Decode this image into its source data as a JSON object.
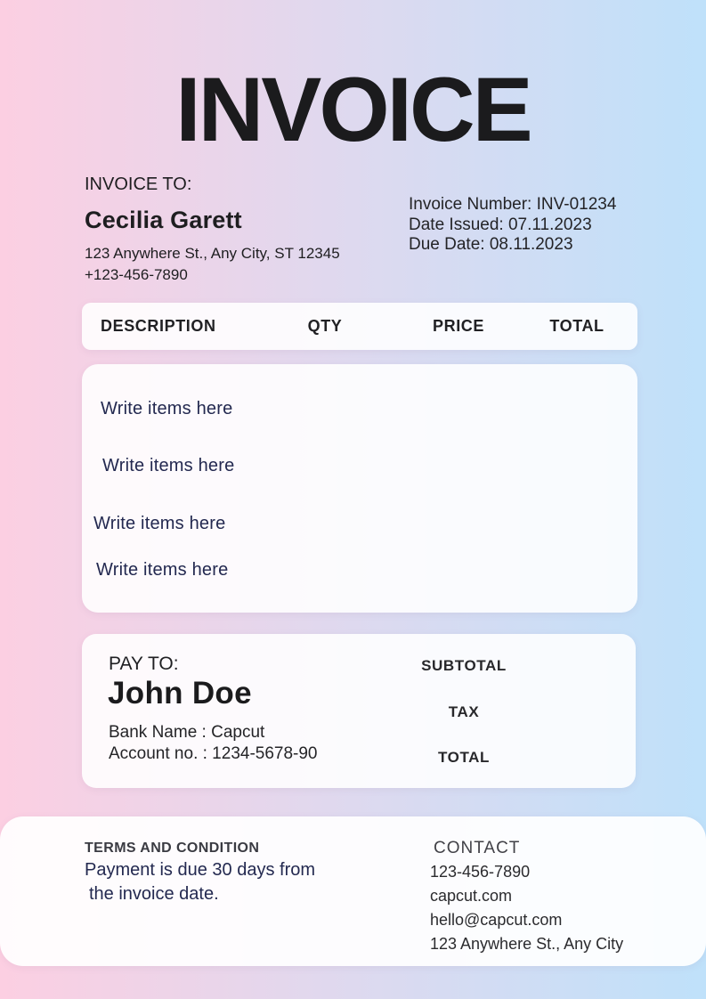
{
  "title": "INVOICE",
  "invoice_to": {
    "label": "INVOICE TO:",
    "name": "Cecilia Garett",
    "address": "123 Anywhere St., Any City, ST 12345",
    "phone": "+123-456-7890"
  },
  "invoice_meta": {
    "number": "Invoice Number: INV-01234",
    "date_issued": "Date Issued: 07.11.2023",
    "due_date": "Due Date: 08.11.2023"
  },
  "items_table": {
    "headers": [
      "DESCRIPTION",
      "QTY",
      "PRICE",
      "TOTAL"
    ],
    "rows": [
      "Write items here",
      "Write items here",
      "Write items here",
      "Write items here"
    ]
  },
  "pay_to": {
    "label": "PAY TO:",
    "name": "John Doe",
    "bank": "Bank Name : Capcut",
    "account": "Account no. : 1234-5678-90",
    "totals": [
      "SUBTOTAL",
      "TAX",
      "TOTAL"
    ]
  },
  "footer": {
    "terms_heading": "TERMS AND CONDITION",
    "terms_line1": "Payment is due 30 days from",
    "terms_line2": "the invoice date.",
    "contact_heading": "CONTACT",
    "contact_lines": [
      "123-456-7890",
      "capcut.com",
      "hello@capcut.com",
      "123 Anywhere St., Any City"
    ]
  },
  "colors": {
    "gradient_left": "#fccfe2",
    "gradient_mid": "#ded9ef",
    "gradient_right": "#bfe1fa",
    "panel": "rgba(255,255,255,0.88)",
    "text_dark": "#1e1e20",
    "text_navy": "#232950"
  }
}
